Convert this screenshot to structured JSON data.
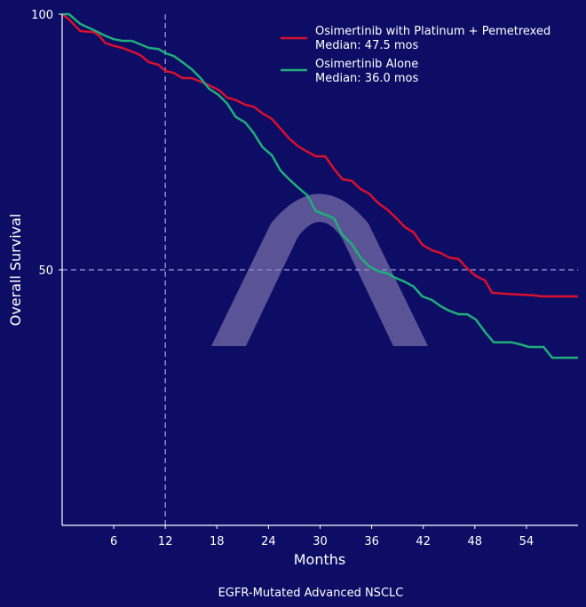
{
  "chart_data": {
    "type": "line",
    "title": "",
    "subtitle": "EGFR-Mutated Advanced NSCLC",
    "xlabel": "Months",
    "ylabel": "Overall Survival",
    "xlim": [
      0,
      60
    ],
    "ylim": [
      0,
      100
    ],
    "x_ticks": [
      6,
      12,
      18,
      24,
      30,
      36,
      42,
      48,
      54
    ],
    "y_ticks": [
      50,
      100
    ],
    "reference_lines": {
      "vertical_x": 12,
      "horizontal_y": 50
    },
    "legend_position": "top-right",
    "background_color": "#0d0d66",
    "watermark": "arch-logo",
    "series": [
      {
        "name": "Osimertinib with Platinum + Pemetrexed",
        "median_label": "Median: 47.5 mos",
        "color": "#d8102c",
        "x": [
          0,
          0.8,
          2.1,
          3.7,
          4.3,
          5,
          6,
          7,
          8.1,
          9.1,
          10.1,
          11.2,
          12,
          13,
          14,
          15.1,
          16.1,
          17.1,
          18.2,
          19.2,
          20.2,
          21.3,
          22.3,
          23.3,
          24.4,
          25.4,
          26.4,
          27.5,
          28.5,
          29.5,
          30.6,
          31.6,
          32.6,
          33.7,
          34.7,
          35.7,
          36.8,
          37.8,
          38.8,
          39.9,
          40.9,
          41.9,
          43,
          44,
          45,
          46.1,
          47.1,
          48.1,
          49.2,
          50,
          51.7,
          54.8,
          55.8,
          60
        ],
        "y": [
          100,
          99,
          96.7,
          96.5,
          95.8,
          94.4,
          93.8,
          93.4,
          92.7,
          92,
          90.6,
          90.1,
          88.9,
          88.5,
          87.5,
          87.5,
          86.8,
          86.1,
          85.2,
          83.7,
          83.2,
          82.3,
          81.9,
          80.6,
          79.5,
          77.6,
          75.7,
          74.1,
          73.1,
          72.2,
          72.2,
          69.8,
          67.7,
          67.4,
          65.8,
          64.9,
          63,
          61.8,
          60.2,
          58.3,
          57.3,
          54.9,
          53.8,
          53.3,
          52.4,
          52.1,
          50.3,
          48.8,
          47.9,
          45.5,
          45.3,
          45,
          44.8,
          44.8
        ]
      },
      {
        "name": "Osimertinib Alone",
        "median_label": "Median: 36.0 mos",
        "color": "#1fae7a",
        "x": [
          0,
          0.8,
          2.1,
          3.9,
          5,
          6,
          7,
          8.1,
          9.1,
          10.1,
          11.2,
          12,
          13,
          14,
          15.1,
          16.1,
          17.1,
          18.2,
          19.2,
          20.2,
          21.3,
          22.3,
          23.3,
          24.4,
          25.4,
          26.4,
          27.5,
          28.5,
          29.5,
          30.6,
          31.6,
          32.6,
          33.7,
          34.7,
          35.7,
          36.8,
          37.8,
          38.8,
          39.9,
          40.9,
          41.9,
          43,
          44,
          45,
          46.1,
          47.1,
          48.1,
          49.2,
          50.2,
          51.2,
          52.3,
          53.3,
          54.3,
          55.4,
          56,
          57,
          60
        ],
        "y": [
          100,
          100,
          98.1,
          96.7,
          95.8,
          95.1,
          94.8,
          94.8,
          94.1,
          93.4,
          93.2,
          92.4,
          91.8,
          90.6,
          89.2,
          87.5,
          85.4,
          84.2,
          82.5,
          79.9,
          78.8,
          76.7,
          74,
          72.4,
          69.4,
          67.7,
          66,
          64.6,
          61.5,
          60.8,
          60.1,
          56.8,
          55,
          52.4,
          50.7,
          49.7,
          49.3,
          48.4,
          47.6,
          46.7,
          44.8,
          44.1,
          42.9,
          42,
          41.3,
          41.3,
          40.3,
          37.8,
          35.8,
          35.8,
          35.8,
          35.4,
          34.9,
          34.9,
          34.9,
          32.8,
          32.8
        ]
      }
    ]
  }
}
